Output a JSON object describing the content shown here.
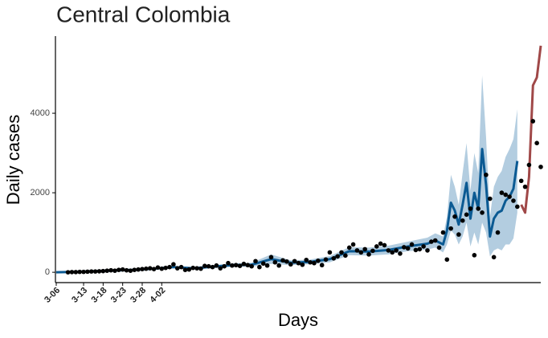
{
  "chart_data": {
    "type": "line",
    "title": "Central Colombia",
    "x_label": "Days",
    "y_label": "Daily cases",
    "xlim": [
      0,
      124
    ],
    "ylim": [
      -260,
      5940
    ],
    "xticks": [
      {
        "value": 0,
        "label": "3-06"
      },
      {
        "value": 7,
        "label": "3-13"
      },
      {
        "value": 12,
        "label": "3-18"
      },
      {
        "value": 17,
        "label": "3-23"
      },
      {
        "value": 22,
        "label": "3-28"
      },
      {
        "value": 27,
        "label": "4-02"
      }
    ],
    "xtick_color": "#a3312f",
    "yticks": [
      0,
      2000,
      4000
    ],
    "band": {
      "color": "#b3cde0",
      "x": [
        0,
        5,
        10,
        15,
        20,
        25,
        30,
        35,
        40,
        45,
        50,
        55,
        60,
        65,
        70,
        75,
        80,
        85,
        90,
        95,
        97,
        99,
        100,
        101,
        102,
        103,
        104,
        105,
        106,
        107,
        108,
        109,
        110,
        111,
        112,
        113,
        114,
        115,
        116,
        117,
        118
      ],
      "lower": [
        -20,
        -10,
        5,
        25,
        40,
        65,
        100,
        70,
        100,
        140,
        140,
        210,
        180,
        200,
        250,
        430,
        420,
        450,
        530,
        570,
        620,
        500,
        700,
        1050,
        950,
        700,
        900,
        1250,
        650,
        1000,
        700,
        1250,
        1000,
        400,
        550,
        600,
        550,
        700,
        700,
        850,
        1500
      ],
      "upper": [
        20,
        30,
        45,
        65,
        80,
        115,
        160,
        130,
        180,
        220,
        240,
        450,
        300,
        320,
        410,
        630,
        620,
        670,
        770,
        870,
        980,
        900,
        1400,
        2450,
        2150,
        1700,
        2500,
        3250,
        2050,
        3000,
        2500,
        4950,
        3400,
        1400,
        2150,
        2400,
        2550,
        2900,
        3100,
        3350,
        4100
      ]
    },
    "fit": {
      "color": "#0b5a93",
      "x": [
        0,
        5,
        10,
        15,
        20,
        25,
        30,
        35,
        40,
        45,
        50,
        55,
        60,
        65,
        70,
        75,
        80,
        85,
        90,
        95,
        97,
        99,
        100,
        101,
        102,
        103,
        104,
        105,
        106,
        107,
        108,
        109,
        110,
        111,
        112,
        113,
        114,
        115,
        116,
        117,
        118
      ],
      "values": [
        0,
        10,
        25,
        45,
        60,
        90,
        130,
        100,
        140,
        180,
        190,
        330,
        240,
        260,
        330,
        530,
        520,
        560,
        650,
        720,
        800,
        700,
        1050,
        1750,
        1550,
        1200,
        1700,
        2250,
        1350,
        2000,
        1600,
        3100,
        2200,
        900,
        1350,
        1500,
        1550,
        1800,
        1900,
        2100,
        2800
      ]
    },
    "projection": {
      "color": "#a04848",
      "x": [
        119,
        120,
        121,
        122,
        123,
        124
      ],
      "values": [
        1700,
        1500,
        2400,
        4700,
        4900,
        5700
      ]
    },
    "observed": {
      "color": "#000000",
      "x": [
        3,
        4,
        5,
        6,
        7,
        8,
        9,
        10,
        11,
        12,
        13,
        14,
        15,
        16,
        17,
        18,
        19,
        20,
        21,
        22,
        23,
        24,
        25,
        26,
        27,
        28,
        29,
        30,
        31,
        32,
        33,
        34,
        35,
        36,
        37,
        38,
        39,
        40,
        41,
        42,
        43,
        44,
        45,
        46,
        47,
        48,
        49,
        50,
        51,
        52,
        53,
        54,
        55,
        56,
        57,
        58,
        59,
        60,
        61,
        62,
        63,
        64,
        65,
        66,
        67,
        68,
        69,
        70,
        71,
        72,
        73,
        74,
        75,
        76,
        77,
        78,
        79,
        80,
        81,
        82,
        83,
        84,
        85,
        86,
        87,
        88,
        89,
        90,
        91,
        92,
        93,
        94,
        95,
        96,
        97,
        98,
        99,
        100,
        101,
        102,
        103,
        104,
        105,
        106,
        107,
        108,
        109,
        110,
        111,
        112,
        113,
        114,
        115,
        116,
        117,
        118,
        119,
        120,
        121,
        122,
        123,
        124
      ],
      "values": [
        0,
        5,
        5,
        10,
        10,
        15,
        20,
        20,
        25,
        30,
        40,
        50,
        40,
        60,
        70,
        50,
        40,
        60,
        70,
        80,
        90,
        100,
        80,
        120,
        90,
        110,
        130,
        200,
        100,
        130,
        60,
        70,
        110,
        100,
        90,
        160,
        150,
        130,
        170,
        100,
        150,
        230,
        170,
        180,
        160,
        210,
        180,
        150,
        280,
        130,
        220,
        170,
        380,
        250,
        170,
        300,
        270,
        200,
        280,
        230,
        190,
        310,
        250,
        230,
        290,
        180,
        320,
        500,
        350,
        400,
        500,
        420,
        620,
        700,
        550,
        500,
        580,
        450,
        540,
        650,
        720,
        680,
        550,
        500,
        550,
        470,
        630,
        600,
        700,
        560,
        580,
        650,
        550,
        770,
        800,
        620,
        1000,
        320,
        1100,
        1400,
        950,
        1300,
        1450,
        1600,
        430,
        1600,
        1500,
        2450,
        1850,
        380,
        1000,
        2000,
        1950,
        1900,
        1800,
        1650,
        2300,
        2150,
        2700,
        3800,
        3250,
        2650
      ]
    }
  }
}
